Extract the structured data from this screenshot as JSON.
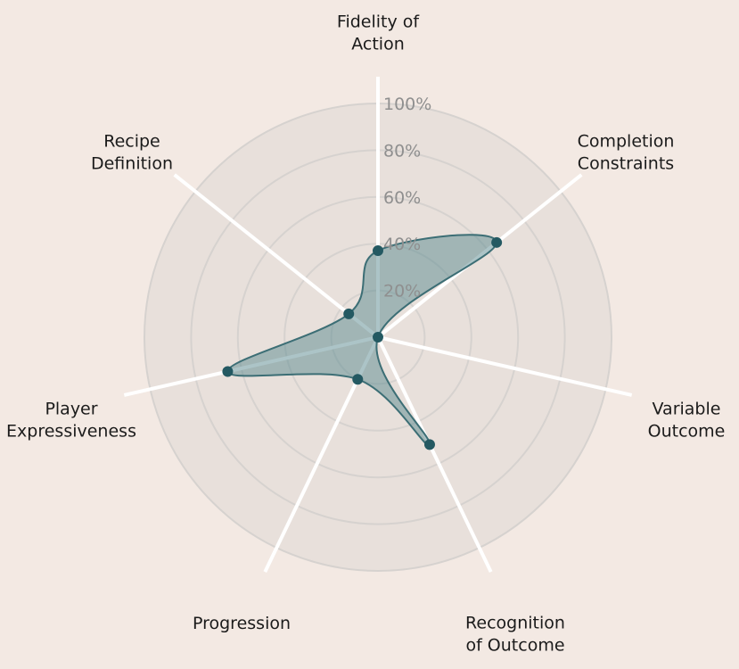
{
  "chart_data": {
    "type": "radar",
    "axes": [
      {
        "label": [
          "Fidelity of",
          "Action"
        ],
        "value": 37
      },
      {
        "label": [
          "Completion",
          "Constraints"
        ],
        "value": 65
      },
      {
        "label": [
          "Variable",
          "Outcome"
        ],
        "value": 0
      },
      {
        "label": [
          "Recognition",
          "of Outcome"
        ],
        "value": 51
      },
      {
        "label": [
          "Progression"
        ],
        "value": 20
      },
      {
        "label": [
          "Player",
          "Expressiveness"
        ],
        "value": 66
      },
      {
        "label": [
          "Recipe",
          "Definition"
        ],
        "value": 16
      }
    ],
    "radial_ticks": [
      "20%",
      "40%",
      "60%",
      "80%",
      "100%"
    ],
    "tick_values": [
      20,
      40,
      60,
      80,
      100
    ],
    "rmax": 100,
    "colors": {
      "background": "#f3e9e3",
      "grid_fill": "#e8e0db",
      "grid_line": "#d6d2cf",
      "spoke": "#ffffff",
      "series_fill": "#5a8a8f",
      "series_line": "#3c6e75",
      "series_marker": "#245962"
    }
  }
}
